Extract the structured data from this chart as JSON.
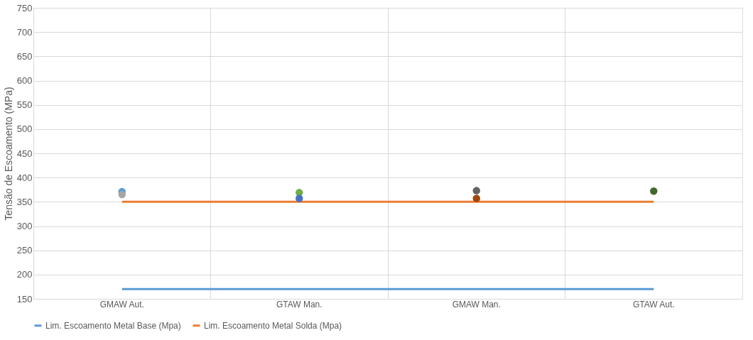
{
  "chart_data": {
    "type": "line",
    "ylabel": "Tensão de Escoamento (MPa)",
    "categories": [
      "GMAW Aut.",
      "GTAW Man.",
      "GMAW Man.",
      "GTAW Aut."
    ],
    "series": [
      {
        "name": "Lim. Escoamento Metal Base (Mpa)",
        "color": "#5b9bd5",
        "values": [
          170,
          170,
          170,
          170
        ]
      },
      {
        "name": "Lim. Escoamento Metal Solda (Mpa)",
        "color": "#ed7d31",
        "values": [
          350,
          350,
          350,
          350
        ]
      },
      {
        "type": "scatter",
        "marker": "circle",
        "x": [
          "GMAW Aut.",
          "GMAW Aut.",
          "GTAW Man.",
          "GTAW Man.",
          "GTAW Man.",
          "GMAW Man.",
          "GMAW Man.",
          "GTAW Aut.",
          "GTAW Aut."
        ],
        "values": [
          371,
          365,
          null,
          369,
          357,
          373,
          357,
          null,
          372
        ],
        "colors": [
          "#5b9bd5",
          "#a5a5a5",
          "#ffc000",
          "#70ad47",
          "#4472c4",
          "#636363",
          "#9e480e",
          "#997300",
          "#43682b"
        ]
      }
    ],
    "ylim": [
      150,
      750
    ],
    "yticks": [
      150,
      200,
      250,
      300,
      350,
      400,
      450,
      500,
      550,
      600,
      650,
      700,
      750
    ],
    "grid": true,
    "legend": "bottom",
    "marker": "none",
    "line_style": "solid"
  }
}
